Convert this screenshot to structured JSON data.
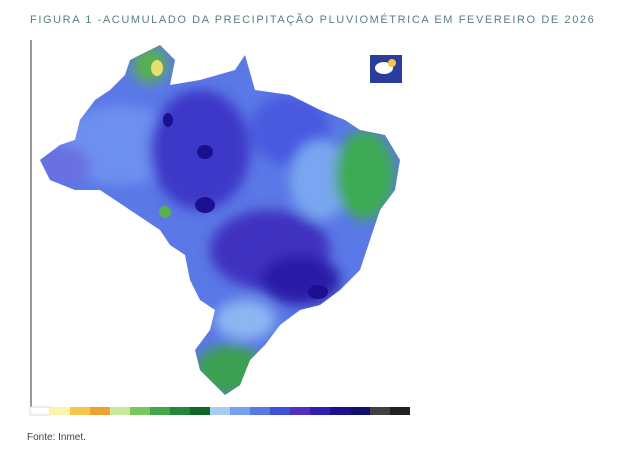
{
  "header": {
    "title": "FIGURA 1 -ACUMULADO DA PRECIPITAÇÃO PLUVIOMÉTRICA EM FEVEREIRO DE 2026"
  },
  "footer": {
    "source": "Fonte: Inmet."
  }
}
